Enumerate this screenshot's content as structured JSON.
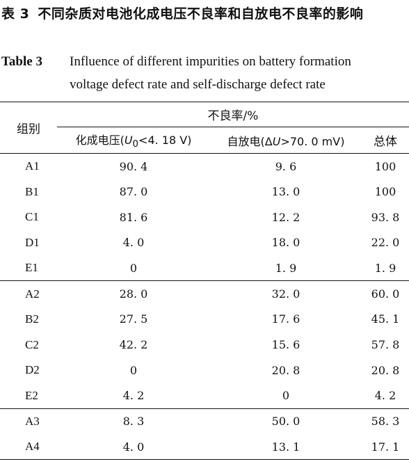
{
  "caption_cn": {
    "number": "表 3",
    "title": "不同杂质对电池化成电压不良率和自放电不良率的影响"
  },
  "caption_en": {
    "label": "Table 3",
    "line1": "Influence of different impurities on battery formation",
    "line2": "voltage defect rate and self-discharge defect rate"
  },
  "table": {
    "group_header": "组别",
    "super_header": "不良率/%",
    "col_formation": {
      "prefix": "化成电压(",
      "var": "U",
      "sub": "0",
      "suffix": "<4. 18 V)"
    },
    "col_self": {
      "prefix": "自放电(Δ",
      "var": "U",
      "suffix": ">70. 0 mV)"
    },
    "col_total": "总体",
    "groups": [
      [
        {
          "group": "A1",
          "formation": "90. 4",
          "self": "9. 6",
          "total": "100"
        },
        {
          "group": "B1",
          "formation": "87. 0",
          "self": "13. 0",
          "total": "100"
        },
        {
          "group": "C1",
          "formation": "81. 6",
          "self": "12. 2",
          "total": "93. 8"
        },
        {
          "group": "D1",
          "formation": "4. 0",
          "self": "18. 0",
          "total": "22. 0"
        },
        {
          "group": "E1",
          "formation": "0",
          "self": "1. 9",
          "total": "1. 9"
        }
      ],
      [
        {
          "group": "A2",
          "formation": "28. 0",
          "self": "32. 0",
          "total": "60. 0"
        },
        {
          "group": "B2",
          "formation": "27. 5",
          "self": "17. 6",
          "total": "45. 1"
        },
        {
          "group": "C2",
          "formation": "42. 2",
          "self": "15. 6",
          "total": "57. 8"
        },
        {
          "group": "D2",
          "formation": "0",
          "self": "20. 8",
          "total": "20. 8"
        },
        {
          "group": "E2",
          "formation": "4. 2",
          "self": "0",
          "total": "4. 2"
        }
      ],
      [
        {
          "group": "A3",
          "formation": "8. 3",
          "self": "50. 0",
          "total": "58. 3"
        },
        {
          "group": "A4",
          "formation": "4. 0",
          "self": "13. 1",
          "total": "17. 1"
        }
      ]
    ]
  }
}
